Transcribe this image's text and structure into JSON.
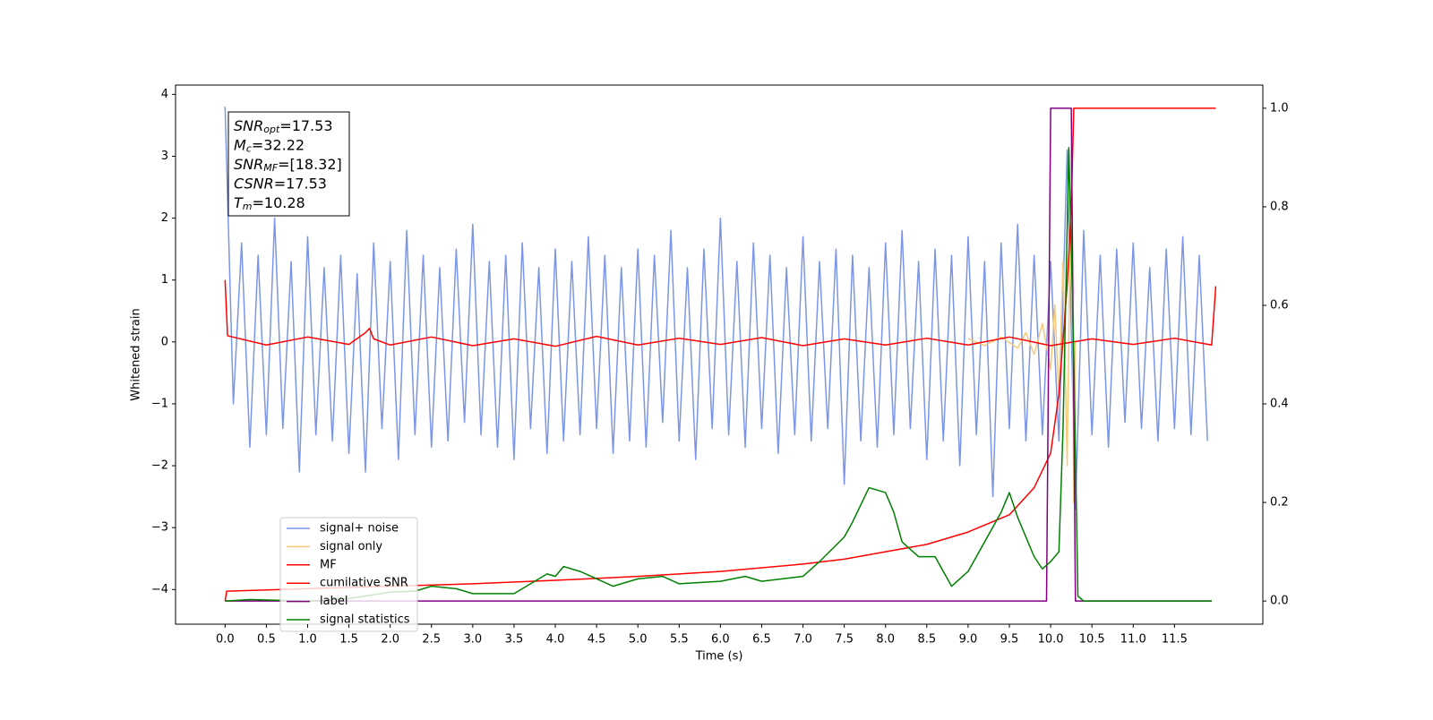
{
  "chart_data": {
    "type": "line",
    "x_label": "Time (s)",
    "y_label": "Whitened strain",
    "xlim": [
      -0.6,
      12.57
    ],
    "ylim": [
      -4.56,
      4.15
    ],
    "y2lim": [
      -0.047,
      1.047
    ],
    "xticks": [
      {
        "value": 0,
        "label": "0.0"
      },
      {
        "value": 0.5,
        "label": "0.5"
      },
      {
        "value": 1,
        "label": "1.0"
      },
      {
        "value": 1.5,
        "label": "1.5"
      },
      {
        "value": 2,
        "label": "2.0"
      },
      {
        "value": 2.5,
        "label": "2.5"
      },
      {
        "value": 3,
        "label": "3.0"
      },
      {
        "value": 3.5,
        "label": "3.5"
      },
      {
        "value": 4,
        "label": "4.0"
      },
      {
        "value": 4.5,
        "label": "4.5"
      },
      {
        "value": 5,
        "label": "5.0"
      },
      {
        "value": 5.5,
        "label": "5.5"
      },
      {
        "value": 6,
        "label": "6.0"
      },
      {
        "value": 6.5,
        "label": "6.5"
      },
      {
        "value": 7,
        "label": "7.0"
      },
      {
        "value": 7.5,
        "label": "7.5"
      },
      {
        "value": 8,
        "label": "8.0"
      },
      {
        "value": 8.5,
        "label": "8.5"
      },
      {
        "value": 9,
        "label": "9.0"
      },
      {
        "value": 9.5,
        "label": "9.5"
      },
      {
        "value": 10,
        "label": "10.0"
      },
      {
        "value": 10.5,
        "label": "10.5"
      },
      {
        "value": 11,
        "label": "11.0"
      },
      {
        "value": 11.5,
        "label": "11.5"
      }
    ],
    "yticks": [
      {
        "value": -4,
        "label": "−4"
      },
      {
        "value": -3,
        "label": "−3"
      },
      {
        "value": -2,
        "label": "−2"
      },
      {
        "value": -1,
        "label": "−1"
      },
      0,
      1,
      2,
      3,
      4
    ],
    "y2ticks": [
      {
        "value": 0,
        "label": "0.0"
      },
      {
        "value": 0.2,
        "label": "0.2"
      },
      {
        "value": 0.4,
        "label": "0.4"
      },
      {
        "value": 0.6,
        "label": "0.6"
      },
      {
        "value": 0.8,
        "label": "0.8"
      },
      {
        "value": 1,
        "label": "1.0"
      }
    ],
    "grid": false,
    "legend": "lower left",
    "annotation": [
      {
        "symbol": "SNR",
        "subscript": "opt",
        "text": "=17.53"
      },
      {
        "symbol": "M",
        "subscript": "c",
        "text": "=32.22"
      },
      {
        "symbol": "SNR",
        "subscript": "MF",
        "text": "=[18.32]"
      },
      {
        "symbol": "CSNR",
        "text": "=17.53"
      },
      {
        "symbol": "T",
        "subscript": "m",
        "text": "=10.28"
      }
    ],
    "series": [
      {
        "name": "signal+ noise",
        "color": "#7b96e8",
        "x": [
          0.0,
          0.1,
          0.2,
          0.3,
          0.4,
          0.5,
          0.6,
          0.7,
          0.8,
          0.9,
          1.0,
          1.1,
          1.2,
          1.3,
          1.4,
          1.5,
          1.6,
          1.7,
          1.8,
          1.9,
          2.0,
          2.1,
          2.2,
          2.3,
          2.4,
          2.5,
          2.6,
          2.7,
          2.8,
          2.9,
          3.0,
          3.1,
          3.2,
          3.3,
          3.4,
          3.5,
          3.6,
          3.7,
          3.8,
          3.9,
          4.0,
          4.1,
          4.2,
          4.3,
          4.4,
          4.5,
          4.6,
          4.7,
          4.8,
          4.9,
          5.0,
          5.1,
          5.2,
          5.3,
          5.4,
          5.5,
          5.6,
          5.7,
          5.8,
          5.9,
          6.0,
          6.1,
          6.2,
          6.3,
          6.4,
          6.5,
          6.6,
          6.7,
          6.8,
          6.9,
          7.0,
          7.1,
          7.2,
          7.3,
          7.4,
          7.5,
          7.6,
          7.7,
          7.8,
          7.9,
          8.0,
          8.1,
          8.2,
          8.3,
          8.4,
          8.5,
          8.6,
          8.7,
          8.8,
          8.9,
          9.0,
          9.1,
          9.2,
          9.3,
          9.4,
          9.5,
          9.6,
          9.7,
          9.8,
          9.9,
          10.0,
          10.1,
          10.2,
          10.3,
          10.4,
          10.5,
          10.6,
          10.7,
          10.8,
          10.9,
          11.0,
          11.1,
          11.2,
          11.3,
          11.4,
          11.5,
          11.6,
          11.7,
          11.8,
          11.9
        ],
        "values": [
          3.8,
          -1.0,
          1.6,
          -1.7,
          1.4,
          -1.5,
          2.0,
          -1.4,
          1.3,
          -2.1,
          1.7,
          -1.5,
          1.2,
          -1.6,
          1.4,
          -1.8,
          1.1,
          -2.1,
          1.6,
          -1.4,
          1.3,
          -1.9,
          1.8,
          -1.5,
          1.4,
          -1.7,
          1.2,
          -1.6,
          1.5,
          -1.3,
          1.9,
          -1.5,
          1.3,
          -1.7,
          1.4,
          -1.9,
          1.6,
          -1.4,
          1.2,
          -1.8,
          1.5,
          -1.6,
          1.3,
          -1.5,
          1.7,
          -1.4,
          1.4,
          -1.8,
          1.2,
          -1.6,
          1.5,
          -1.7,
          1.4,
          -1.3,
          1.8,
          -1.6,
          1.2,
          -1.9,
          1.5,
          -1.4,
          2.0,
          -1.5,
          1.3,
          -1.7,
          1.6,
          -1.4,
          1.4,
          -1.8,
          1.2,
          -1.5,
          1.7,
          -1.6,
          1.3,
          -1.4,
          1.5,
          -2.3,
          1.4,
          -1.6,
          1.2,
          -1.7,
          1.6,
          -1.5,
          1.8,
          -1.4,
          1.3,
          -1.9,
          1.5,
          -1.6,
          1.4,
          -2.0,
          1.7,
          -1.5,
          1.3,
          -2.5,
          1.6,
          -1.4,
          1.9,
          -1.6,
          1.4,
          -1.5,
          1.3,
          -1.6,
          3.1,
          -2.7,
          1.8,
          -1.5,
          1.4,
          -1.7,
          1.5,
          -1.3,
          1.6,
          -1.4,
          1.2,
          -1.6,
          1.5,
          -1.4,
          1.7,
          -1.5,
          1.4,
          -1.6
        ]
      },
      {
        "name": "signal only",
        "color": "#f5c97a",
        "x": [
          9.0,
          9.2,
          9.4,
          9.6,
          9.7,
          9.8,
          9.9,
          10.0,
          10.05,
          10.1,
          10.15,
          10.2,
          10.25,
          10.28,
          10.3
        ],
        "values": [
          0.05,
          -0.06,
          0.08,
          -0.1,
          0.15,
          -0.2,
          0.3,
          -0.45,
          0.6,
          -0.9,
          1.3,
          -2.0,
          3.1,
          -2.6,
          0
        ]
      },
      {
        "name": "MF",
        "color": "#ff0000",
        "x": [
          0,
          0.03,
          0.5,
          1.0,
          1.5,
          1.7,
          1.75,
          1.8,
          2.0,
          2.5,
          3.0,
          3.5,
          4.0,
          4.5,
          5.0,
          5.5,
          6.0,
          6.5,
          7.0,
          7.5,
          8.0,
          8.5,
          9.0,
          9.5,
          10.0,
          10.5,
          11.0,
          11.5,
          11.95,
          12.0
        ],
        "values": [
          1.0,
          0.1,
          -0.05,
          0.08,
          -0.04,
          0.15,
          0.22,
          0.05,
          -0.05,
          0.08,
          -0.06,
          0.05,
          -0.07,
          0.09,
          -0.05,
          0.06,
          -0.04,
          0.07,
          -0.06,
          0.05,
          -0.05,
          0.06,
          -0.05,
          0.08,
          -0.06,
          0.05,
          -0.04,
          0.06,
          -0.05,
          0.9
        ]
      },
      {
        "name": "cumilative SNR",
        "color": "#ff0000",
        "axis": "y2",
        "x": [
          0,
          0.02,
          1,
          2,
          3,
          4,
          5,
          6,
          7,
          7.5,
          8,
          8.5,
          9,
          9.5,
          9.8,
          10.0,
          10.1,
          10.2,
          10.25,
          10.28,
          12.0
        ],
        "values": [
          0,
          0.02,
          0.025,
          0.03,
          0.035,
          0.042,
          0.05,
          0.06,
          0.075,
          0.085,
          0.1,
          0.115,
          0.14,
          0.175,
          0.23,
          0.3,
          0.42,
          0.64,
          0.8,
          1.0,
          1.0
        ]
      },
      {
        "name": "label",
        "color": "#800080",
        "axis": "y2",
        "x": [
          0,
          9.95,
          10.0,
          10.25,
          10.3,
          11.95
        ],
        "values": [
          0,
          0,
          1,
          1,
          0,
          0
        ]
      },
      {
        "name": "signal statistics",
        "color": "#008000",
        "axis": "y2",
        "x": [
          0,
          0.3,
          1.0,
          1.5,
          2.0,
          2.3,
          2.5,
          2.8,
          3.0,
          3.5,
          3.9,
          4.0,
          4.1,
          4.2,
          4.3,
          4.5,
          4.7,
          5.0,
          5.3,
          5.5,
          6.0,
          6.3,
          6.5,
          7.0,
          7.2,
          7.5,
          7.6,
          7.8,
          8.0,
          8.1,
          8.2,
          8.4,
          8.6,
          8.8,
          9.0,
          9.2,
          9.4,
          9.5,
          9.6,
          9.8,
          9.9,
          10.0,
          10.1,
          10.15,
          10.22,
          10.28,
          10.33,
          10.4,
          11.95
        ],
        "values": [
          0,
          0.003,
          0,
          0.005,
          0.018,
          0.02,
          0.03,
          0.025,
          0.015,
          0.015,
          0.055,
          0.05,
          0.07,
          0.065,
          0.06,
          0.045,
          0.03,
          0.045,
          0.05,
          0.035,
          0.04,
          0.05,
          0.04,
          0.05,
          0.08,
          0.13,
          0.16,
          0.23,
          0.22,
          0.18,
          0.12,
          0.09,
          0.09,
          0.03,
          0.06,
          0.12,
          0.18,
          0.22,
          0.17,
          0.09,
          0.065,
          0.08,
          0.1,
          0.35,
          0.92,
          0.5,
          0.01,
          0,
          0
        ]
      }
    ]
  }
}
